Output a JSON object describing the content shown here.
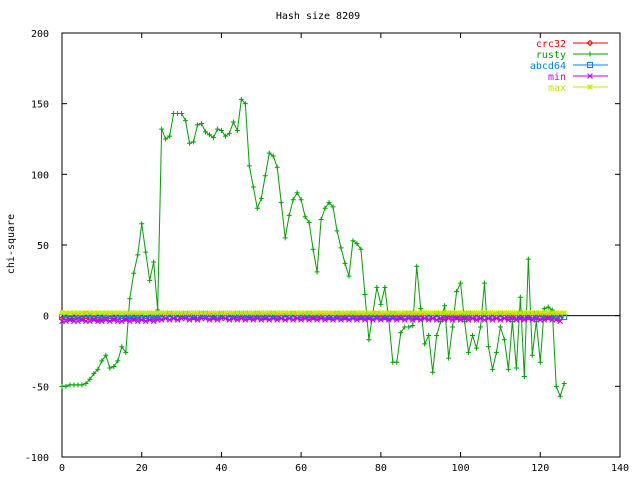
{
  "chart_data": {
    "type": "line",
    "title": "Hash size 8209",
    "xlabel": "",
    "ylabel": "chi-square",
    "xlim": [
      0,
      140
    ],
    "ylim": [
      -100,
      200
    ],
    "xticks": [
      "0",
      "20",
      "40",
      "60",
      "80",
      "100",
      "120",
      "140"
    ],
    "yticks": [
      "-100",
      "-50",
      "0",
      "50",
      "100",
      "150",
      "200"
    ],
    "legend_position": "top-right",
    "grid": false,
    "series": [
      {
        "name": "crc32",
        "color": "#ff0000",
        "marker": "diamond",
        "values": [
          -2,
          -1,
          -2,
          -2,
          -1,
          -2,
          -2,
          -1,
          -2,
          -3,
          -2,
          -1,
          -2,
          -2,
          -1,
          -2,
          -2,
          -1,
          -2,
          -1,
          -1,
          -2,
          -1,
          -1,
          0,
          1,
          0,
          1,
          0,
          1,
          1,
          0,
          1,
          0,
          0,
          1,
          0,
          1,
          1,
          0,
          1,
          0,
          1,
          1,
          0,
          1,
          0,
          0,
          -1,
          0,
          -1,
          0,
          1,
          0,
          -1,
          0,
          1,
          0,
          -1,
          0,
          0,
          1,
          0,
          -1,
          0,
          1,
          0,
          -1,
          0,
          0,
          -1,
          0,
          1,
          0,
          -1,
          0,
          -1,
          0,
          1,
          0,
          -1,
          0,
          1,
          0,
          -1,
          0,
          1,
          0,
          -1,
          0,
          1,
          0,
          -1,
          0,
          1,
          0,
          0,
          1,
          0,
          -1,
          0,
          1,
          0,
          0,
          -1,
          0,
          1,
          0,
          -1,
          0,
          1,
          0,
          0,
          1,
          0,
          -1,
          0,
          1,
          0,
          0,
          1,
          0,
          -1,
          0,
          -1,
          -2
        ]
      },
      {
        "name": "rusty",
        "color": "#00a000",
        "marker": "plus",
        "values": [
          -50,
          -50,
          -49,
          -49,
          -49,
          -49,
          -48,
          -45,
          -41,
          -38,
          -32,
          -28,
          -37,
          -36,
          -32,
          -22,
          -26,
          12,
          30,
          43,
          65,
          45,
          25,
          38,
          4,
          132,
          125,
          127,
          143,
          143,
          143,
          138,
          122,
          123,
          135,
          136,
          130,
          128,
          126,
          132,
          131,
          127,
          129,
          137,
          131,
          153,
          150,
          106,
          91,
          76,
          83,
          99,
          115,
          113,
          105,
          80,
          55,
          71,
          82,
          87,
          82,
          70,
          66,
          47,
          31,
          68,
          76,
          80,
          77,
          60,
          48,
          37,
          28,
          53,
          51,
          47,
          15,
          -17,
          2,
          20,
          8,
          20,
          -3,
          -33,
          -33,
          -12,
          -8,
          -8,
          -7,
          35,
          5,
          -20,
          -14,
          -40,
          -14,
          -4,
          7,
          -30,
          -8,
          17,
          23,
          -4,
          -26,
          -14,
          -23,
          -8,
          23,
          -22,
          -38,
          -26,
          -8,
          -17,
          -38,
          -4,
          -37,
          13,
          -43,
          40,
          -28,
          -4,
          -33,
          5,
          6,
          4,
          -50,
          -57,
          -48
        ]
      },
      {
        "name": "abcd64",
        "color": "#0080ff",
        "marker": "square",
        "values": [
          -1,
          -1,
          0,
          -1,
          0,
          0,
          1,
          -1,
          0,
          -1,
          -1,
          0,
          0,
          -1,
          -1,
          0,
          -1,
          0,
          -1,
          0,
          -1,
          0,
          -1,
          0,
          -1,
          0,
          0,
          1,
          0,
          -1,
          0,
          1,
          0,
          -1,
          0,
          1,
          1,
          0,
          -1,
          0,
          1,
          0,
          -1,
          0,
          1,
          0,
          1,
          -1,
          0,
          1,
          0,
          -1,
          0,
          1,
          0,
          0,
          -1,
          0,
          1,
          0,
          -1,
          0,
          1,
          0,
          -1,
          0,
          0,
          -1,
          0,
          1,
          0,
          -1,
          0,
          1,
          0,
          -1,
          0,
          -1,
          0,
          1,
          0,
          -1,
          0,
          1,
          0,
          -1,
          0,
          1,
          0,
          -1,
          0,
          0,
          -1,
          0,
          1,
          0,
          -1,
          0,
          1,
          0,
          -1,
          0,
          1,
          0,
          -1,
          0,
          1,
          0,
          -1,
          0,
          1,
          0,
          -1,
          0,
          0,
          1,
          0,
          -1,
          0,
          1,
          0,
          -1,
          0,
          1,
          0,
          -1,
          -1
        ]
      },
      {
        "name": "min",
        "color": "#c000ff",
        "marker": "cross",
        "values": [
          -4,
          -4,
          -3,
          -4,
          -4,
          -3,
          -4,
          -4,
          -3,
          -4,
          -4,
          -3,
          -4,
          -3,
          -4,
          -4,
          -3,
          -4,
          -3,
          -4,
          -3,
          -4,
          -3,
          -4,
          -3,
          -3,
          -2,
          -3,
          -2,
          -3,
          -2,
          -2,
          -3,
          -2,
          -3,
          -2,
          -2,
          -3,
          -2,
          -3,
          -2,
          -2,
          -3,
          -2,
          -3,
          -2,
          -3,
          -2,
          -3,
          -2,
          -3,
          -2,
          -3,
          -2,
          -3,
          -2,
          -3,
          -2,
          -3,
          -2,
          -3,
          -2,
          -3,
          -2,
          -3,
          -2,
          -3,
          -2,
          -3,
          -2,
          -3,
          -2,
          -3,
          -2,
          -3,
          -2,
          -3,
          -2,
          -3,
          -2,
          -3,
          -2,
          -3,
          -2,
          -3,
          -2,
          -3,
          -2,
          -3,
          -2,
          -3,
          -2,
          -3,
          -2,
          -3,
          -2,
          -3,
          -2,
          -3,
          -2,
          -3,
          -2,
          -3,
          -2,
          -3,
          -2,
          -3,
          -2,
          -3,
          -2,
          -3,
          -2,
          -3,
          -2,
          -3,
          -2,
          -3,
          -2,
          -3,
          -2,
          -3,
          -3,
          -2,
          -3,
          -3,
          -4
        ]
      },
      {
        "name": "max",
        "color": "#c8e600",
        "marker": "star",
        "values": [
          2,
          2,
          2,
          2,
          2,
          2,
          2,
          2,
          2,
          2,
          2,
          2,
          2,
          2,
          2,
          2,
          2,
          2,
          2,
          2,
          2,
          2,
          2,
          2,
          2,
          2,
          2,
          2,
          2,
          2,
          2,
          2,
          2,
          2,
          2,
          2,
          2,
          2,
          2,
          2,
          2,
          2,
          2,
          2,
          2,
          2,
          2,
          2,
          2,
          2,
          2,
          2,
          2,
          2,
          2,
          2,
          2,
          2,
          2,
          2,
          2,
          2,
          2,
          2,
          2,
          2,
          2,
          2,
          2,
          2,
          2,
          2,
          2,
          2,
          2,
          2,
          2,
          2,
          2,
          2,
          2,
          2,
          2,
          2,
          2,
          2,
          2,
          2,
          2,
          2,
          2,
          2,
          2,
          2,
          2,
          2,
          2,
          2,
          2,
          2,
          2,
          2,
          2,
          2,
          2,
          2,
          2,
          2,
          2,
          2,
          2,
          2,
          2,
          2,
          2,
          2,
          2,
          2,
          2,
          2,
          2,
          2,
          2,
          2,
          2,
          2,
          2
        ]
      }
    ]
  }
}
